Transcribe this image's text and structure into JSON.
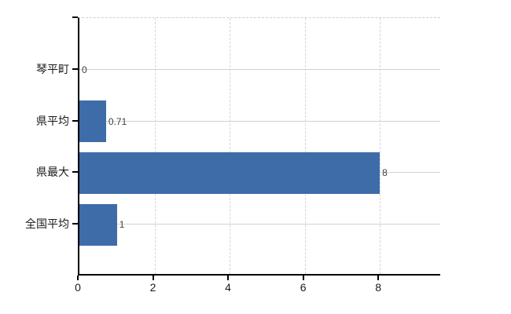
{
  "chart_data": {
    "type": "bar",
    "orientation": "horizontal",
    "title": "",
    "xlabel": "",
    "ylabel": "",
    "categories": [
      "琴平町",
      "県平均",
      "県最大",
      "全国平均"
    ],
    "values": [
      0,
      0.71,
      8,
      1
    ],
    "value_labels": [
      "0",
      "0.71",
      "8",
      "1"
    ],
    "x_ticks": [
      0,
      2,
      4,
      6,
      8
    ],
    "x_tick_labels": [
      "0",
      "2",
      "4",
      "6",
      "8"
    ],
    "xlim": [
      0,
      9.65
    ],
    "grid": {
      "vertical": "dashed at x ticks 2,4,6,8",
      "horizontal": "solid at each category row center",
      "top_border": "dashed"
    },
    "legend": "none"
  },
  "colors": {
    "background": "#ffffff",
    "bar": "#3e6ca8",
    "axis": "#000000",
    "h_gridline": "#ccd5cc",
    "v_gridline": "#d5d5d5",
    "top_border": "#d2cbd1",
    "value_label": "#404040",
    "tick_label": "#1a1a1a"
  }
}
